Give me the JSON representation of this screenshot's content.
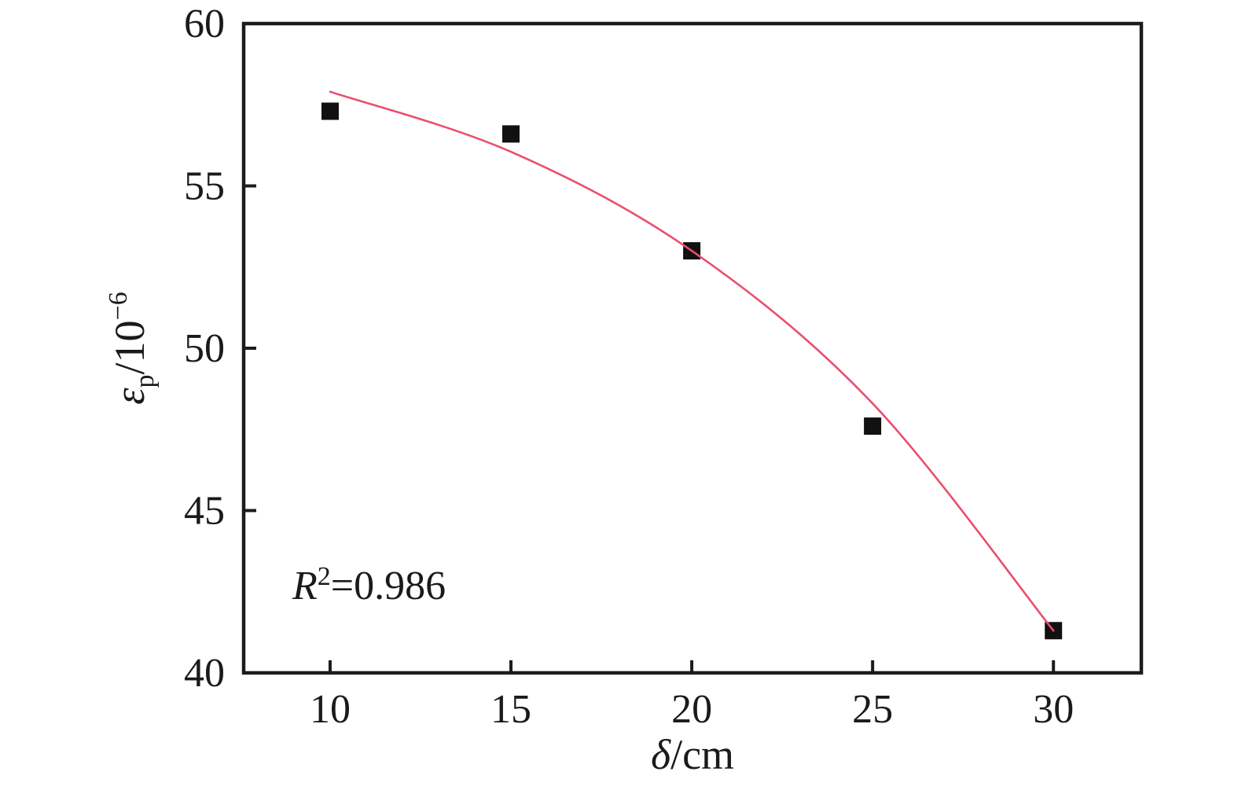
{
  "figure": {
    "background": "#ffffff"
  },
  "chart_data": {
    "type": "scatter",
    "title": "",
    "xlabel": {
      "symbol": "δ",
      "rest": "/cm"
    },
    "ylabel": {
      "symbol": "ε",
      "sub": "p",
      "rest": "/10",
      "sup": "−6"
    },
    "annotation": {
      "base": "R",
      "sup": "2",
      "rest": "=0.986"
    },
    "x": [
      10,
      15,
      20,
      25,
      30
    ],
    "y": [
      57.3,
      56.6,
      53.0,
      47.6,
      41.3
    ],
    "marker": {
      "shape": "square",
      "color": "#111111",
      "size": 22
    },
    "fit_curve": {
      "type": "quadratic-fit",
      "r_squared": 0.986,
      "color": "#ea4f6d",
      "width": 2.6,
      "x": [
        10,
        15,
        20,
        25,
        30
      ],
      "y": [
        57.9,
        56.05,
        53.0,
        48.3,
        41.3
      ]
    },
    "axes": {
      "xlim": [
        7.61,
        32.43
      ],
      "ylim": [
        40,
        60
      ],
      "xticks": [
        10,
        15,
        20,
        25,
        30
      ],
      "yticks": [
        40,
        45,
        50,
        55,
        60
      ],
      "grid": false,
      "frame": true,
      "axis_color": "#1c1c1c",
      "tick_direction": "in"
    }
  }
}
